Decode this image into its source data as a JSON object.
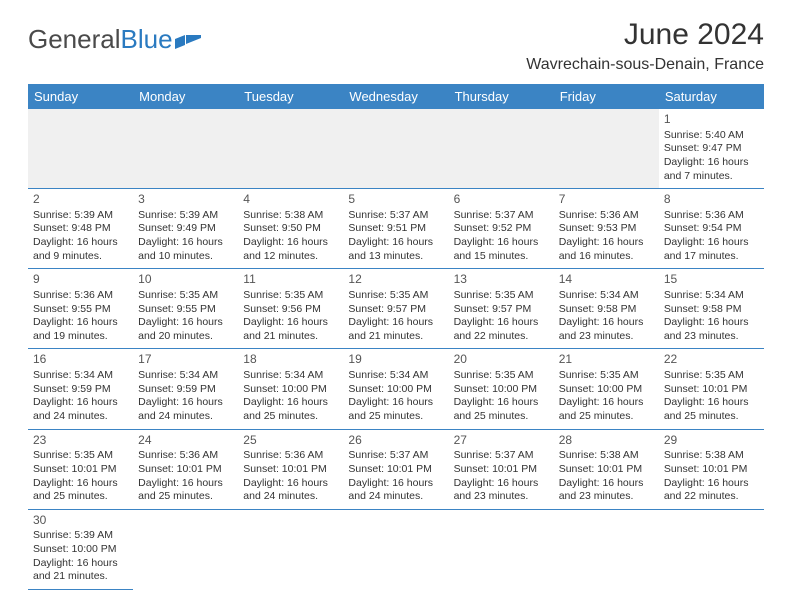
{
  "brand": {
    "name1": "General",
    "name2": "Blue"
  },
  "title": "June 2024",
  "location": "Wavrechain-sous-Denain, France",
  "colors": {
    "header_bg": "#3b84c4",
    "header_text": "#ffffff",
    "row_divider": "#3b84c4",
    "brand_gray": "#4a4a4a",
    "brand_blue": "#2a7ac0",
    "empty_bg": "#f0f0f0"
  },
  "weekdays": [
    "Sunday",
    "Monday",
    "Tuesday",
    "Wednesday",
    "Thursday",
    "Friday",
    "Saturday"
  ],
  "weeks": [
    [
      null,
      null,
      null,
      null,
      null,
      null,
      {
        "n": "1",
        "sr": "Sunrise: 5:40 AM",
        "ss": "Sunset: 9:47 PM",
        "d1": "Daylight: 16 hours",
        "d2": "and 7 minutes."
      }
    ],
    [
      {
        "n": "2",
        "sr": "Sunrise: 5:39 AM",
        "ss": "Sunset: 9:48 PM",
        "d1": "Daylight: 16 hours",
        "d2": "and 9 minutes."
      },
      {
        "n": "3",
        "sr": "Sunrise: 5:39 AM",
        "ss": "Sunset: 9:49 PM",
        "d1": "Daylight: 16 hours",
        "d2": "and 10 minutes."
      },
      {
        "n": "4",
        "sr": "Sunrise: 5:38 AM",
        "ss": "Sunset: 9:50 PM",
        "d1": "Daylight: 16 hours",
        "d2": "and 12 minutes."
      },
      {
        "n": "5",
        "sr": "Sunrise: 5:37 AM",
        "ss": "Sunset: 9:51 PM",
        "d1": "Daylight: 16 hours",
        "d2": "and 13 minutes."
      },
      {
        "n": "6",
        "sr": "Sunrise: 5:37 AM",
        "ss": "Sunset: 9:52 PM",
        "d1": "Daylight: 16 hours",
        "d2": "and 15 minutes."
      },
      {
        "n": "7",
        "sr": "Sunrise: 5:36 AM",
        "ss": "Sunset: 9:53 PM",
        "d1": "Daylight: 16 hours",
        "d2": "and 16 minutes."
      },
      {
        "n": "8",
        "sr": "Sunrise: 5:36 AM",
        "ss": "Sunset: 9:54 PM",
        "d1": "Daylight: 16 hours",
        "d2": "and 17 minutes."
      }
    ],
    [
      {
        "n": "9",
        "sr": "Sunrise: 5:36 AM",
        "ss": "Sunset: 9:55 PM",
        "d1": "Daylight: 16 hours",
        "d2": "and 19 minutes."
      },
      {
        "n": "10",
        "sr": "Sunrise: 5:35 AM",
        "ss": "Sunset: 9:55 PM",
        "d1": "Daylight: 16 hours",
        "d2": "and 20 minutes."
      },
      {
        "n": "11",
        "sr": "Sunrise: 5:35 AM",
        "ss": "Sunset: 9:56 PM",
        "d1": "Daylight: 16 hours",
        "d2": "and 21 minutes."
      },
      {
        "n": "12",
        "sr": "Sunrise: 5:35 AM",
        "ss": "Sunset: 9:57 PM",
        "d1": "Daylight: 16 hours",
        "d2": "and 21 minutes."
      },
      {
        "n": "13",
        "sr": "Sunrise: 5:35 AM",
        "ss": "Sunset: 9:57 PM",
        "d1": "Daylight: 16 hours",
        "d2": "and 22 minutes."
      },
      {
        "n": "14",
        "sr": "Sunrise: 5:34 AM",
        "ss": "Sunset: 9:58 PM",
        "d1": "Daylight: 16 hours",
        "d2": "and 23 minutes."
      },
      {
        "n": "15",
        "sr": "Sunrise: 5:34 AM",
        "ss": "Sunset: 9:58 PM",
        "d1": "Daylight: 16 hours",
        "d2": "and 23 minutes."
      }
    ],
    [
      {
        "n": "16",
        "sr": "Sunrise: 5:34 AM",
        "ss": "Sunset: 9:59 PM",
        "d1": "Daylight: 16 hours",
        "d2": "and 24 minutes."
      },
      {
        "n": "17",
        "sr": "Sunrise: 5:34 AM",
        "ss": "Sunset: 9:59 PM",
        "d1": "Daylight: 16 hours",
        "d2": "and 24 minutes."
      },
      {
        "n": "18",
        "sr": "Sunrise: 5:34 AM",
        "ss": "Sunset: 10:00 PM",
        "d1": "Daylight: 16 hours",
        "d2": "and 25 minutes."
      },
      {
        "n": "19",
        "sr": "Sunrise: 5:34 AM",
        "ss": "Sunset: 10:00 PM",
        "d1": "Daylight: 16 hours",
        "d2": "and 25 minutes."
      },
      {
        "n": "20",
        "sr": "Sunrise: 5:35 AM",
        "ss": "Sunset: 10:00 PM",
        "d1": "Daylight: 16 hours",
        "d2": "and 25 minutes."
      },
      {
        "n": "21",
        "sr": "Sunrise: 5:35 AM",
        "ss": "Sunset: 10:00 PM",
        "d1": "Daylight: 16 hours",
        "d2": "and 25 minutes."
      },
      {
        "n": "22",
        "sr": "Sunrise: 5:35 AM",
        "ss": "Sunset: 10:01 PM",
        "d1": "Daylight: 16 hours",
        "d2": "and 25 minutes."
      }
    ],
    [
      {
        "n": "23",
        "sr": "Sunrise: 5:35 AM",
        "ss": "Sunset: 10:01 PM",
        "d1": "Daylight: 16 hours",
        "d2": "and 25 minutes."
      },
      {
        "n": "24",
        "sr": "Sunrise: 5:36 AM",
        "ss": "Sunset: 10:01 PM",
        "d1": "Daylight: 16 hours",
        "d2": "and 25 minutes."
      },
      {
        "n": "25",
        "sr": "Sunrise: 5:36 AM",
        "ss": "Sunset: 10:01 PM",
        "d1": "Daylight: 16 hours",
        "d2": "and 24 minutes."
      },
      {
        "n": "26",
        "sr": "Sunrise: 5:37 AM",
        "ss": "Sunset: 10:01 PM",
        "d1": "Daylight: 16 hours",
        "d2": "and 24 minutes."
      },
      {
        "n": "27",
        "sr": "Sunrise: 5:37 AM",
        "ss": "Sunset: 10:01 PM",
        "d1": "Daylight: 16 hours",
        "d2": "and 23 minutes."
      },
      {
        "n": "28",
        "sr": "Sunrise: 5:38 AM",
        "ss": "Sunset: 10:01 PM",
        "d1": "Daylight: 16 hours",
        "d2": "and 23 minutes."
      },
      {
        "n": "29",
        "sr": "Sunrise: 5:38 AM",
        "ss": "Sunset: 10:01 PM",
        "d1": "Daylight: 16 hours",
        "d2": "and 22 minutes."
      }
    ],
    [
      {
        "n": "30",
        "sr": "Sunrise: 5:39 AM",
        "ss": "Sunset: 10:00 PM",
        "d1": "Daylight: 16 hours",
        "d2": "and 21 minutes."
      },
      null,
      null,
      null,
      null,
      null,
      null
    ]
  ]
}
